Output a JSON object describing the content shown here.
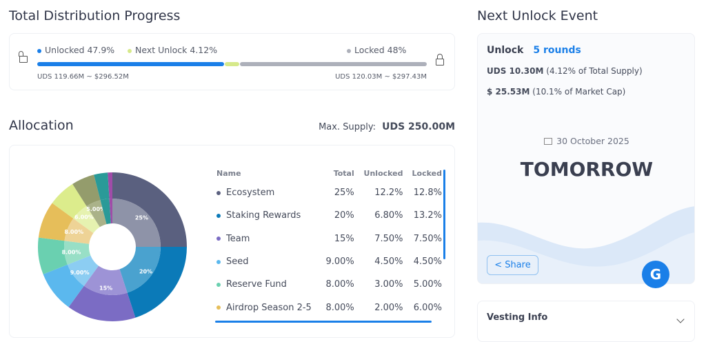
{
  "progress": {
    "title": "Total Distribution Progress",
    "unlocked_label": "Unlocked 47.9%",
    "next_label": "Next Unlock 4.12%",
    "locked_label": "Locked 48%",
    "unlocked_pct": 47.9,
    "next_pct": 4.12,
    "locked_pct": 48,
    "unlocked_amount": "UDS 119.66M ~ $296.52M",
    "locked_amount": "UDS 120.03M ~ $297.43M",
    "colors": {
      "unlocked": "#1a7fe8",
      "next": "#d6e98a",
      "locked": "#adb0ba"
    }
  },
  "allocation": {
    "title": "Allocation",
    "max_supply_label": "Max. Supply:",
    "max_supply_value": "UDS 250.00M",
    "columns": [
      "Name",
      "Total",
      "Unlocked",
      "Locked"
    ],
    "rows": [
      {
        "name": "Ecosystem",
        "total": "25%",
        "unlocked": "12.2%",
        "locked": "12.8%",
        "color": "#5a607f"
      },
      {
        "name": "Staking Rewards",
        "total": "20%",
        "unlocked": "6.80%",
        "locked": "13.2%",
        "color": "#0b7ab8"
      },
      {
        "name": "Team",
        "total": "15%",
        "unlocked": "7.50%",
        "locked": "7.50%",
        "color": "#7b6cc4"
      },
      {
        "name": "Seed",
        "total": "9.00%",
        "unlocked": "4.50%",
        "locked": "4.50%",
        "color": "#5bb8ee"
      },
      {
        "name": "Reserve Fund",
        "total": "8.00%",
        "unlocked": "3.00%",
        "locked": "5.00%",
        "color": "#6ad0b0"
      },
      {
        "name": "Airdrop Season 2-5",
        "total": "8.00%",
        "unlocked": "2.00%",
        "locked": "6.00%",
        "color": "#e6be5a"
      }
    ]
  },
  "chart_data": {
    "type": "pie",
    "values": [
      25,
      20,
      15,
      9,
      8,
      8,
      6,
      5,
      3,
      1
    ],
    "labels": [
      "25%",
      "20%",
      "15%",
      "9.00%",
      "8.00%",
      "8.00%",
      "6.00%",
      "5.00%",
      "",
      ""
    ],
    "colors": [
      "#5a607f",
      "#0b7ab8",
      "#7b6cc4",
      "#5bb8ee",
      "#6ad0b0",
      "#e6be5a",
      "#dcec8c",
      "#949c6c",
      "#2a9a98",
      "#a04ca8"
    ],
    "inner_colors": [
      "#8e93a8",
      "#4aa2cf",
      "#9d93d6",
      "#8ccdf2",
      "#98dfc6",
      "#eed396",
      "#e6f2b0",
      "#aab289",
      "#2a9a98",
      "#a04ca8"
    ]
  },
  "unlock": {
    "title": "Next Unlock Event",
    "label": "Unlock",
    "rounds": "5 rounds",
    "amount": "UDS 10.30M",
    "amount_note": "(4.12% of Total Supply)",
    "usd": "$ 25.53M",
    "usd_note": "(10.1% of Market Cap)",
    "date": "30 October 2025",
    "when": "TOMORROW",
    "share": "Share"
  },
  "vesting": {
    "title": "Vesting Info"
  }
}
